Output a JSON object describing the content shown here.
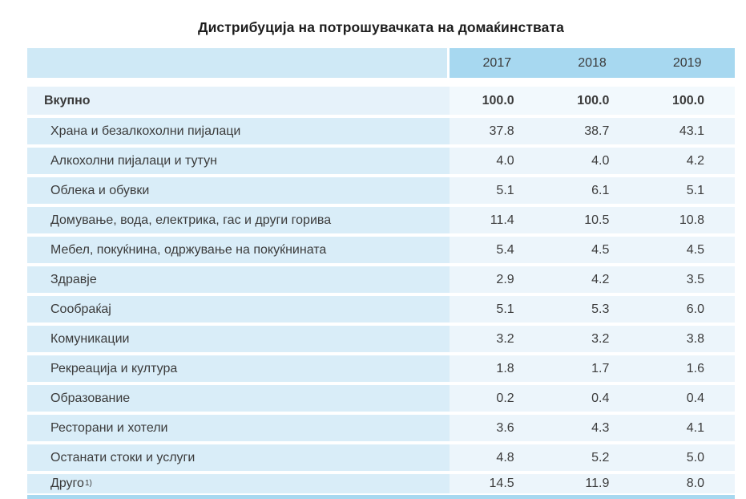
{
  "title": "Дистрибуција на потрошувачката на домаќинствата",
  "colors": {
    "header-blue": "#a7d8f0",
    "header-label-blue": "#cfe9f6",
    "row-label-blue": "#d9edf8",
    "row-value-blue": "#ecf5fb",
    "total-label-blue": "#e6f2fa",
    "total-value-blue": "#f2f9fd",
    "strip-blue": "#a7d8f0",
    "text-color": "#3b3b3b",
    "title-color": "#1d1d1d"
  },
  "table": {
    "columns": [
      "2017",
      "2018",
      "2019"
    ],
    "total_row": {
      "label": "Вкупно",
      "values": [
        "100.0",
        "100.0",
        "100.0"
      ]
    },
    "rows": [
      {
        "label": "Храна и безалкохолни пијалаци",
        "values": [
          "37.8",
          "38.7",
          "43.1"
        ]
      },
      {
        "label": "Алкохолни пијалаци и тутун",
        "values": [
          "4.0",
          "4.0",
          "4.2"
        ]
      },
      {
        "label": "Облека и обувки",
        "values": [
          "5.1",
          "6.1",
          "5.1"
        ]
      },
      {
        "label": "Домување, вода, електрика, гас и други горива",
        "values": [
          "11.4",
          "10.5",
          "10.8"
        ]
      },
      {
        "label": "Мебел, покуќнина, одржување на покуќнината",
        "values": [
          "5.4",
          "4.5",
          "4.5"
        ]
      },
      {
        "label": "Здравје",
        "values": [
          "2.9",
          "4.2",
          "3.5"
        ]
      },
      {
        "label": "Сообраќај",
        "values": [
          "5.1",
          "5.3",
          "6.0"
        ]
      },
      {
        "label": "Комуникации",
        "values": [
          "3.2",
          "3.2",
          "3.8"
        ]
      },
      {
        "label": "Рекреација и култура",
        "values": [
          "1.8",
          "1.7",
          "1.6"
        ]
      },
      {
        "label": "Образование",
        "values": [
          "0.2",
          "0.4",
          "0.4"
        ]
      },
      {
        "label": "Ресторани и хотели",
        "values": [
          "3.6",
          "4.3",
          "4.1"
        ]
      },
      {
        "label": "Останати стоки и услуги",
        "values": [
          "4.8",
          "5.2",
          "5.0"
        ]
      },
      {
        "label": "Друго",
        "footnote_marker": "1)",
        "values": [
          "14.5",
          "11.9",
          "8.0"
        ]
      }
    ]
  },
  "chart_data": {
    "type": "table",
    "title": "Дистрибуција на потрошувачката на домаќинствата",
    "categories": [
      "2017",
      "2018",
      "2019"
    ],
    "series": [
      {
        "name": "Вкупно",
        "values": [
          100.0,
          100.0,
          100.0
        ]
      },
      {
        "name": "Храна и безалкохолни пијалаци",
        "values": [
          37.8,
          38.7,
          43.1
        ]
      },
      {
        "name": "Алкохолни пијалаци и тутун",
        "values": [
          4.0,
          4.0,
          4.2
        ]
      },
      {
        "name": "Облека и обувки",
        "values": [
          5.1,
          6.1,
          5.1
        ]
      },
      {
        "name": "Домување, вода, електрика, гас и други горива",
        "values": [
          11.4,
          10.5,
          10.8
        ]
      },
      {
        "name": "Мебел, покуќнина, одржување на покуќнината",
        "values": [
          5.4,
          4.5,
          4.5
        ]
      },
      {
        "name": "Здравје",
        "values": [
          2.9,
          4.2,
          3.5
        ]
      },
      {
        "name": "Сообраќај",
        "values": [
          5.1,
          5.3,
          6.0
        ]
      },
      {
        "name": "Комуникации",
        "values": [
          3.2,
          3.2,
          3.8
        ]
      },
      {
        "name": "Рекреација и култура",
        "values": [
          1.8,
          1.7,
          1.6
        ]
      },
      {
        "name": "Образование",
        "values": [
          0.2,
          0.4,
          0.4
        ]
      },
      {
        "name": "Ресторани и хотели",
        "values": [
          3.6,
          4.3,
          4.1
        ]
      },
      {
        "name": "Останати стоки и услуги",
        "values": [
          4.8,
          5.2,
          5.0
        ]
      },
      {
        "name": "Друго 1)",
        "values": [
          14.5,
          11.9,
          8.0
        ]
      }
    ],
    "layout": {
      "grid": false,
      "legend": "none",
      "header_row": "years",
      "unit": "percent"
    }
  }
}
